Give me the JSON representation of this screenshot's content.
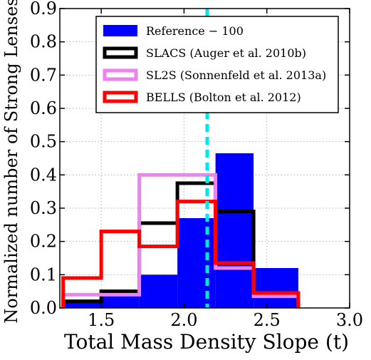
{
  "chart_data": {
    "type": "histogram",
    "xlabel": "Total Mass Density Slope (t)",
    "ylabel": "Normalized number of Strong Lenses",
    "xlim": [
      1.25,
      3.0
    ],
    "ylim": [
      0,
      0.9
    ],
    "xticks": [
      1.5,
      2.0,
      2.5,
      3.0
    ],
    "xtick_labels": [
      "1.5",
      "2.0",
      "2.5",
      "3.0"
    ],
    "yticks": [
      0.0,
      0.1,
      0.2,
      0.3,
      0.4,
      0.5,
      0.6,
      0.7,
      0.8,
      0.9
    ],
    "ytick_labels": [
      "0.0",
      "0.1",
      "0.2",
      "0.3",
      "0.4",
      "0.5",
      "0.6",
      "0.7",
      "0.8",
      "0.9"
    ],
    "grid": true,
    "legend_position": "top-center",
    "vline": {
      "x": 2.14,
      "color": "#00e5ee",
      "style": "dashed"
    },
    "series": [
      {
        "name": "Reference − 100",
        "style": "filled",
        "color": "#0000ff",
        "bin_edges": [
          1.27,
          1.5,
          1.73,
          1.96,
          2.19,
          2.42,
          2.69
        ],
        "values": [
          0.02,
          0.04,
          0.1,
          0.27,
          0.465,
          0.12
        ]
      },
      {
        "name": "SLACS (Auger et al. 2010b)",
        "style": "step",
        "color": "#000000",
        "bin_edges": [
          1.27,
          1.5,
          1.73,
          1.96,
          2.19,
          2.42,
          2.69
        ],
        "values": [
          0.02,
          0.05,
          0.255,
          0.375,
          0.29,
          0.04
        ]
      },
      {
        "name": "SL2S (Sonnenfeld et al. 2013a)",
        "style": "step",
        "color": "#ee82ee",
        "bin_edges": [
          1.27,
          1.5,
          1.73,
          1.96,
          2.19,
          2.42,
          2.69
        ],
        "values": [
          0.04,
          0.04,
          0.4,
          0.4,
          0.12,
          0.035
        ]
      },
      {
        "name": "BELLS (Bolton et al. 2012)",
        "style": "step",
        "color": "#ff0000",
        "bin_edges": [
          1.27,
          1.5,
          1.73,
          1.96,
          2.19,
          2.42,
          2.69
        ],
        "values": [
          0.09,
          0.23,
          0.185,
          0.32,
          0.135,
          0.045
        ]
      }
    ]
  }
}
